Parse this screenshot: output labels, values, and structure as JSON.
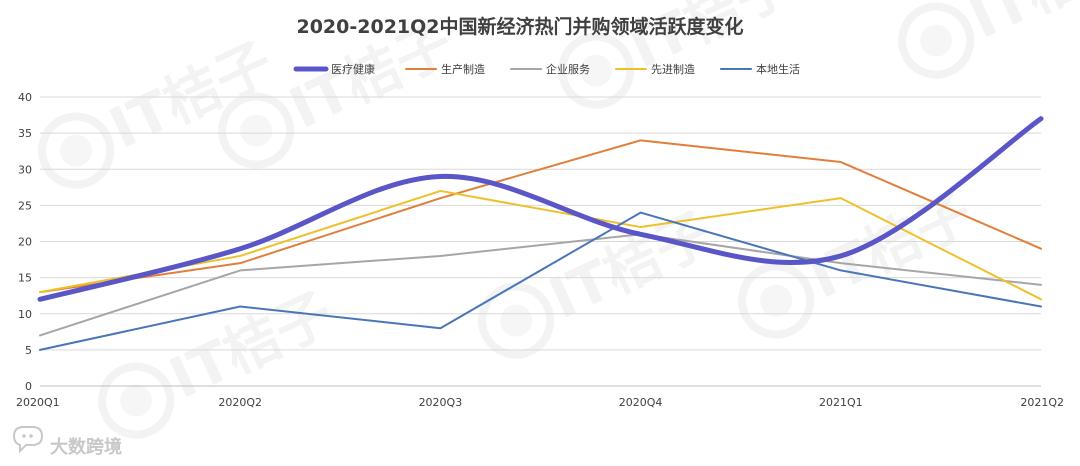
{
  "chart_data": {
    "type": "line",
    "title": "2020-2021Q2中国新经济热门并购领域活跃度变化",
    "categories": [
      "2020Q1",
      "2020Q2",
      "2020Q3",
      "2020Q4",
      "2021Q1",
      "2021Q2"
    ],
    "ylim": [
      0,
      40
    ],
    "yticks": [
      0,
      5,
      10,
      15,
      20,
      25,
      30,
      35,
      40
    ],
    "grid": true,
    "legend_position": "top",
    "series": [
      {
        "name": "医疗健康",
        "values": [
          12,
          19,
          29,
          21,
          18,
          37
        ],
        "color": "#5b56c8",
        "smooth": true,
        "bold": true
      },
      {
        "name": "生产制造",
        "values": [
          13,
          17,
          26,
          34,
          31,
          19
        ],
        "color": "#e07f3b"
      },
      {
        "name": "企业服务",
        "values": [
          7,
          16,
          18,
          21,
          17,
          14
        ],
        "color": "#a6a6a6"
      },
      {
        "name": "先进制造",
        "values": [
          13,
          18,
          27,
          22,
          26,
          12
        ],
        "color": "#f0c02b"
      },
      {
        "name": "本地生活",
        "values": [
          5,
          11,
          8,
          24,
          16,
          11
        ],
        "color": "#4a76b8"
      }
    ]
  },
  "watermark": {
    "text": "IT桔子",
    "icon": "orange-slice-icon"
  },
  "brand": {
    "text": "大数跨境",
    "icon": "chat-bubble-icon"
  }
}
